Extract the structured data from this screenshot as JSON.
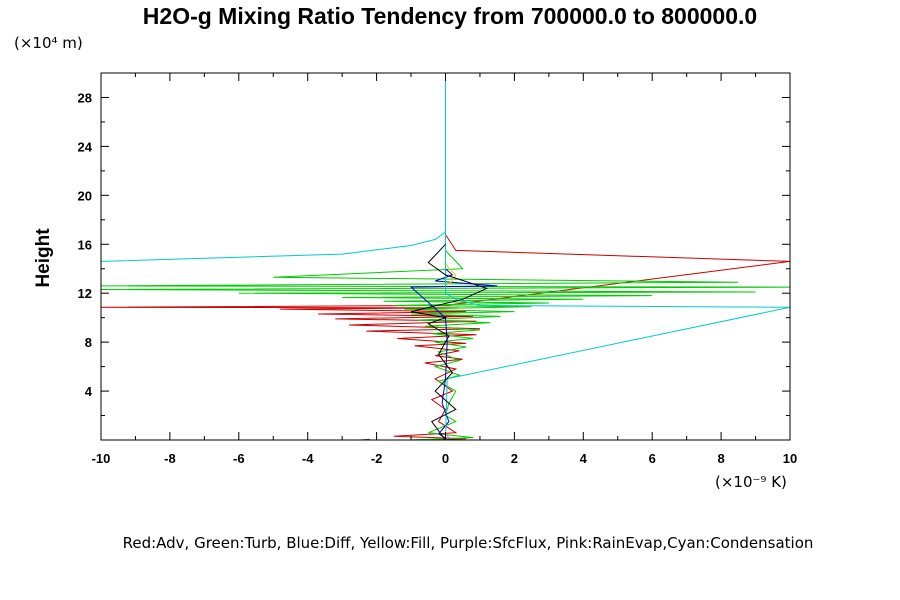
{
  "chart_data": {
    "type": "line",
    "title": "H2O-g Mixing Ratio Tendency from 700000.0 to 800000.0",
    "ylabel": "Height",
    "y_unit": "(×10⁴ m)",
    "x_unit": "(×10⁻⁹ K)",
    "legend_text": "Red:Adv, Green:Turb, Blue:Diff, Yellow:Fill, Purple:SfcFlux, Pink:RainEvap,Cyan:Condensation",
    "xlim": [
      -10,
      10
    ],
    "ylim": [
      0,
      30
    ],
    "x_ticks": [
      -10,
      -8,
      -6,
      -4,
      -2,
      0,
      2,
      4,
      6,
      8,
      10
    ],
    "x_tick_labels": [
      "-10",
      "-8",
      "-6",
      "-4",
      "-2",
      "0",
      "2",
      "4",
      "6",
      "8",
      "10"
    ],
    "y_ticks": [
      4,
      8,
      12,
      16,
      20,
      24,
      28
    ],
    "y_tick_labels": [
      "4",
      "8",
      "12",
      "16",
      "20",
      "24",
      "28"
    ],
    "grid": false,
    "series": [
      {
        "name": "Adv",
        "color": "#cc0000",
        "x": [
          -1.0,
          0.6,
          -1.5,
          0.3,
          -0.2,
          0.0,
          -0.4,
          0.2,
          -0.3,
          0.3,
          -0.6,
          0.5,
          -0.3,
          0.4,
          -0.9,
          0.6,
          -1.4,
          0.9,
          -2.3,
          1.0,
          -2.8,
          0.9,
          -3.2,
          0.8,
          -3.7,
          0.6,
          -4.8,
          0.4,
          -10.0,
          0.0,
          10.0,
          0.3,
          0.0
        ],
        "y": [
          0.0,
          0.1,
          0.3,
          0.6,
          1.5,
          2.5,
          3.3,
          4.0,
          5.0,
          5.8,
          6.3,
          6.6,
          6.9,
          7.3,
          7.7,
          7.9,
          8.3,
          8.6,
          8.9,
          9.1,
          9.4,
          9.7,
          9.9,
          10.1,
          10.3,
          10.5,
          10.7,
          10.8,
          10.85,
          11.0,
          14.6,
          15.5,
          16.8
        ]
      },
      {
        "name": "Turb",
        "color": "#00cc00",
        "x": [
          -1.0,
          0.8,
          -0.5,
          0.3,
          0.0,
          0.1,
          0.3,
          -0.2,
          0.4,
          -0.3,
          0.4,
          -0.2,
          0.6,
          -0.3,
          0.8,
          -0.4,
          1.0,
          -0.6,
          1.3,
          -0.8,
          1.6,
          -1.0,
          2.0,
          -1.2,
          2.5,
          -1.5,
          3.0,
          -1.8,
          4.0,
          -3.0,
          6.0,
          -6.0,
          9.0,
          -10.0,
          10.0,
          -10.0,
          8.5,
          -5.0,
          0.5,
          0.0
        ],
        "y": [
          0.0,
          0.2,
          0.6,
          1.5,
          2.0,
          3.0,
          4.0,
          4.8,
          5.3,
          6.0,
          6.5,
          7.2,
          7.6,
          8.0,
          8.3,
          8.7,
          9.0,
          9.3,
          9.6,
          9.8,
          10.1,
          10.3,
          10.5,
          10.7,
          10.9,
          11.0,
          11.2,
          11.35,
          11.5,
          11.65,
          11.8,
          12.0,
          12.1,
          12.3,
          12.5,
          12.6,
          12.9,
          13.3,
          14.0,
          15.5
        ]
      },
      {
        "name": "Diff",
        "color": "#0000cc",
        "x": [
          0.1,
          -0.2,
          0.1,
          -0.1,
          0.0,
          0.05,
          0.0,
          -1.0,
          1.5,
          -0.3,
          0.2,
          0.0
        ],
        "y": [
          0.0,
          0.5,
          1.5,
          3.0,
          5.0,
          8.0,
          10.0,
          12.5,
          12.6,
          13.0,
          13.5,
          14.0
        ]
      },
      {
        "name": "Fill",
        "color": "#e6d000",
        "x": [
          0.0,
          0.2,
          0.3,
          0.1,
          0.0
        ],
        "y": [
          12.6,
          13.0,
          13.5,
          14.0,
          14.5
        ]
      },
      {
        "name": "SfcFlux",
        "color": "#9900cc",
        "x": [
          -2.5,
          -2.2
        ],
        "y": [
          0.0,
          0.05
        ]
      },
      {
        "name": "RainEvap",
        "color": "#ff66cc",
        "x": [
          0.0,
          0.1,
          0.0
        ],
        "y": [
          0.0,
          0.2,
          0.5
        ]
      },
      {
        "name": "Condensation",
        "color": "#00cccc",
        "x": [
          -10.0,
          -3.0,
          -1.0,
          -0.3,
          0.0,
          0.0,
          0.0,
          0.3,
          1.0,
          10.0,
          0.05,
          0.0
        ],
        "y": [
          14.6,
          15.2,
          15.9,
          16.4,
          17.0,
          30.0,
          12.0,
          11.5,
          11.0,
          10.85,
          5.0,
          0.0
        ]
      },
      {
        "name": "Total",
        "color": "#000000",
        "x": [
          0.0,
          -0.4,
          0.3,
          -0.3,
          0.2,
          -0.2,
          0.1,
          -0.5,
          0.0,
          -1.0,
          0.5,
          1.2,
          0.0,
          -0.5,
          0.0
        ],
        "y": [
          0.0,
          1.5,
          2.5,
          4.0,
          5.5,
          7.0,
          8.5,
          9.5,
          10.0,
          10.5,
          11.5,
          12.4,
          13.5,
          14.5,
          16.0
        ]
      }
    ]
  }
}
